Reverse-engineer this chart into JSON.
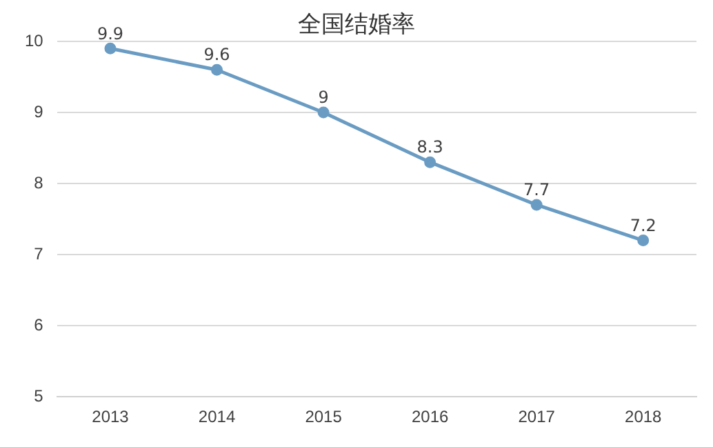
{
  "chart_data": {
    "type": "line",
    "title": "全国结婚率",
    "categories": [
      "2013",
      "2014",
      "2015",
      "2016",
      "2017",
      "2018"
    ],
    "series": [
      {
        "color": "#6a9cc3",
        "values": [
          9.9,
          9.6,
          9,
          8.3,
          7.7,
          7.2
        ]
      }
    ],
    "ylim": [
      5,
      10
    ],
    "yticks": [
      5,
      6,
      7,
      8,
      9,
      10
    ],
    "grid": "y",
    "marker": "circle",
    "line_style": "solid",
    "data_labels": true,
    "legend": false
  }
}
